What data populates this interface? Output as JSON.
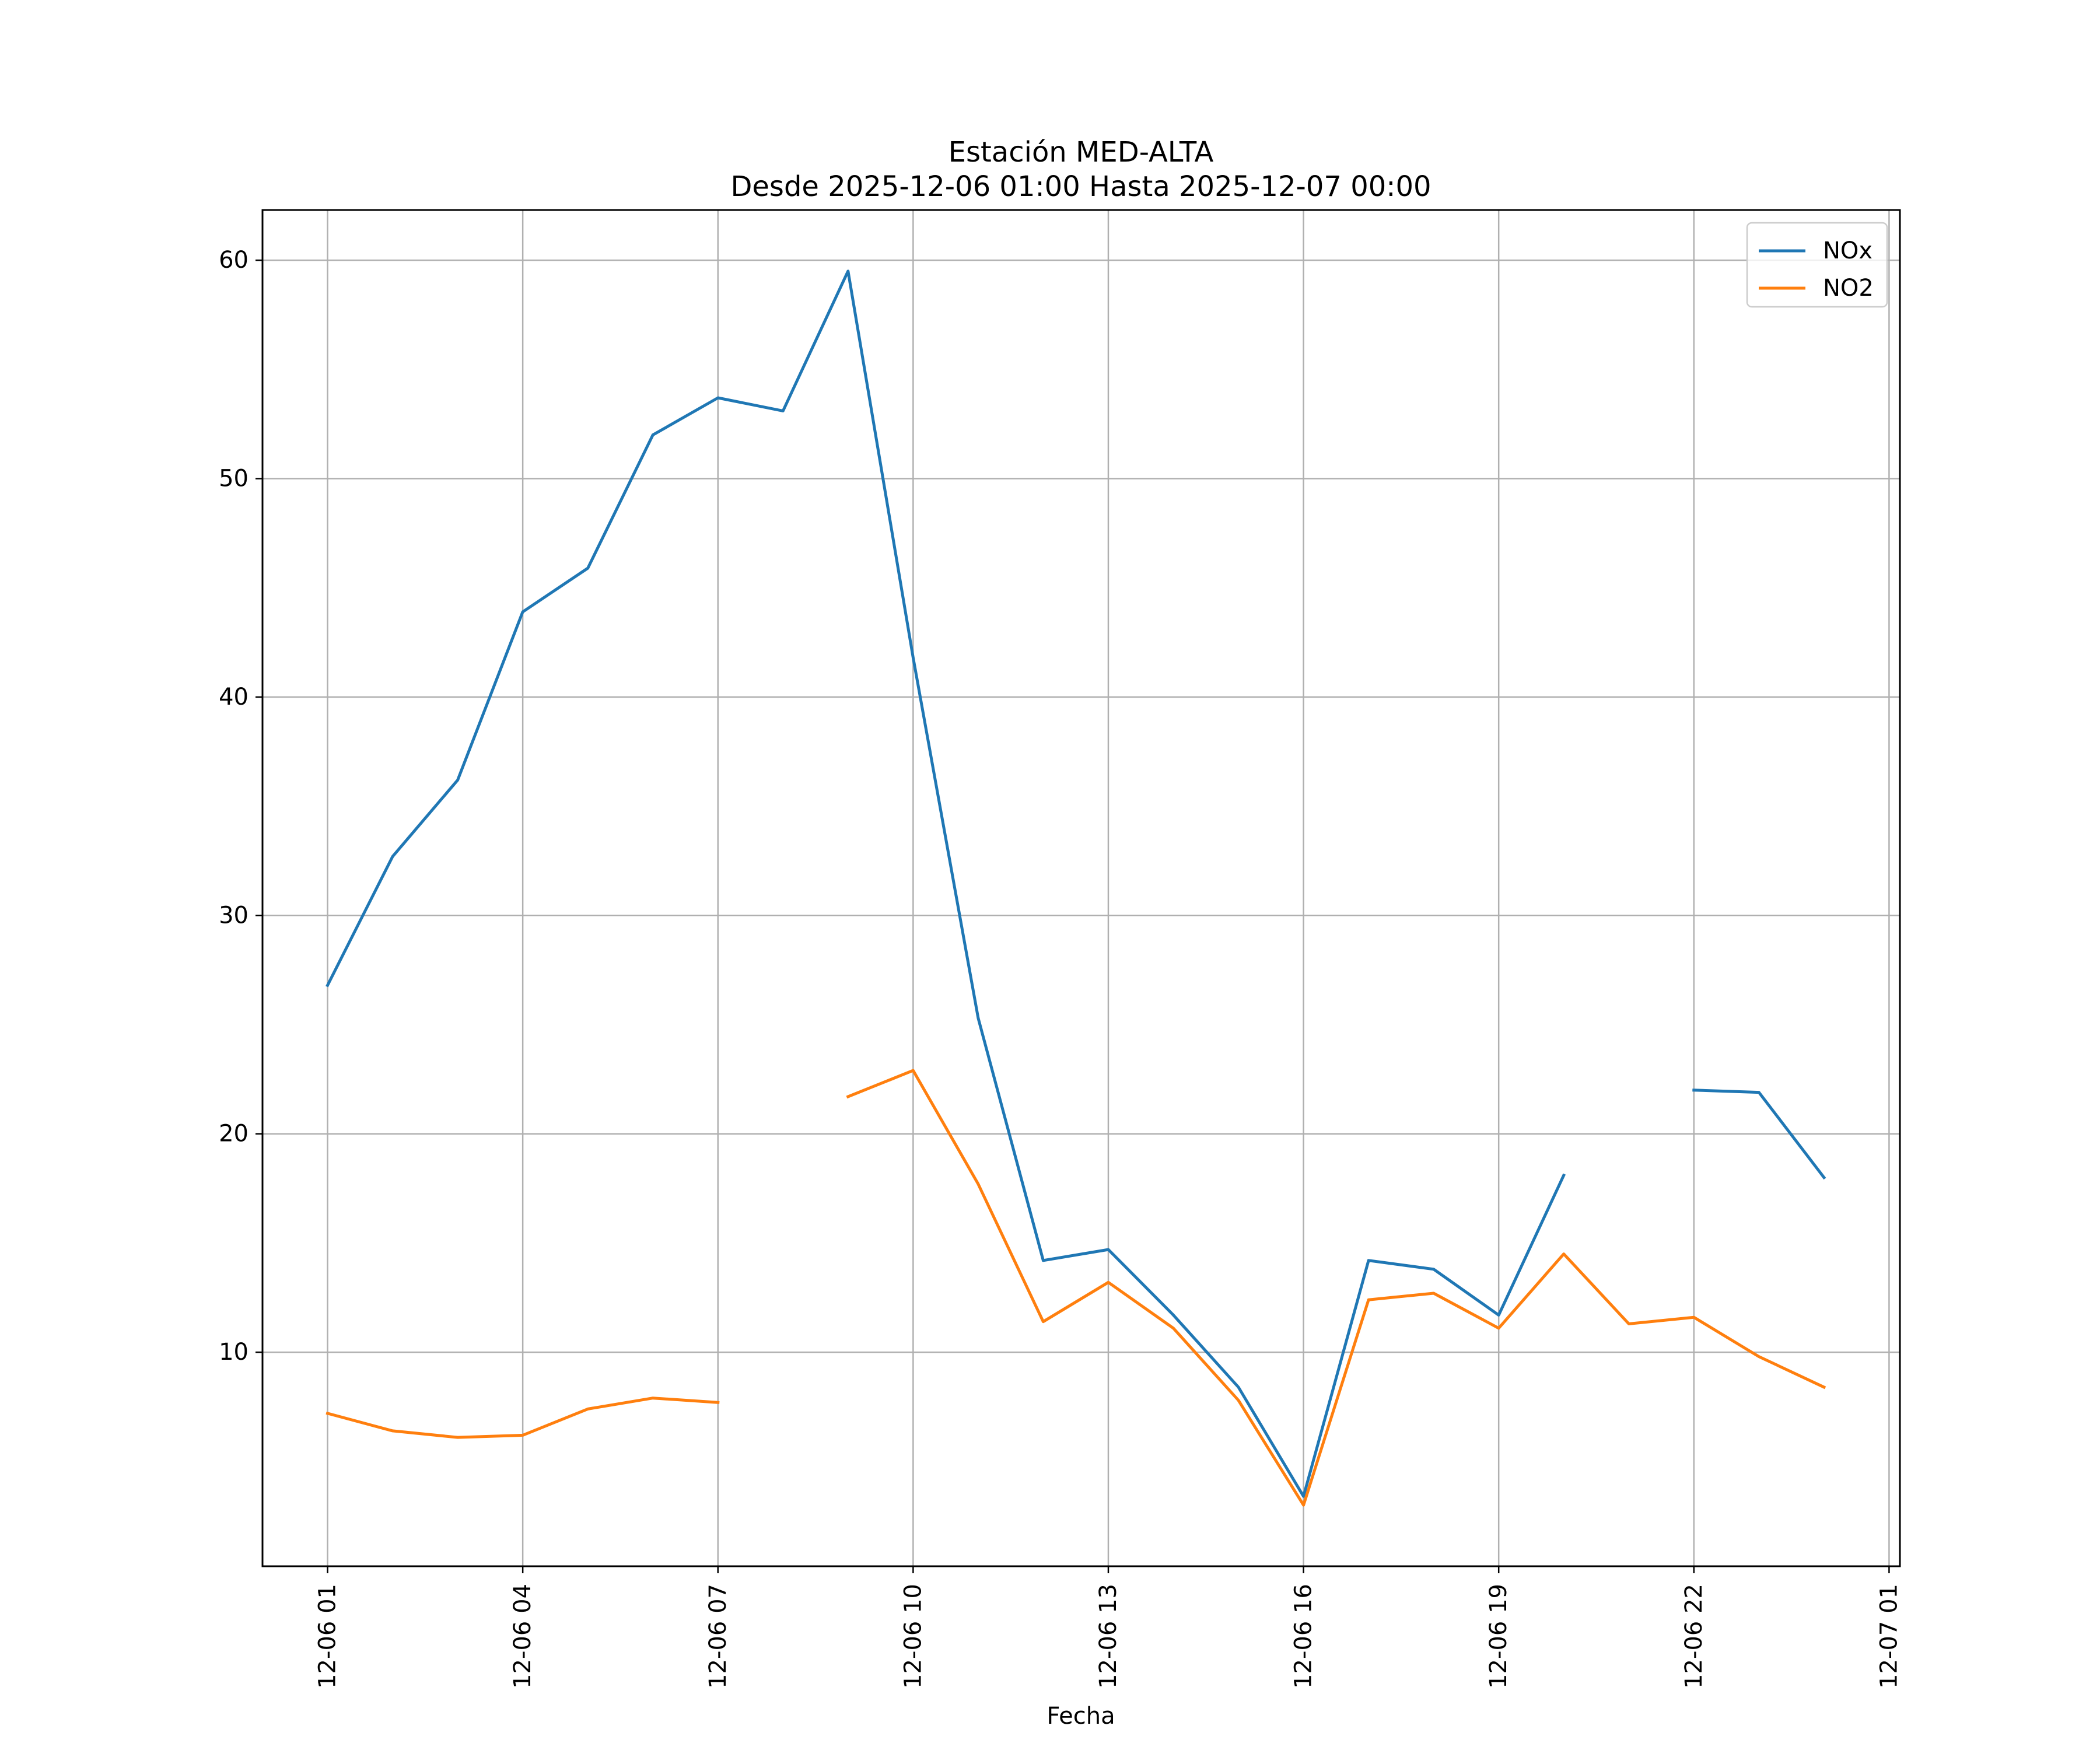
{
  "chart_data": {
    "type": "line",
    "title": "Estación MED-ALTA",
    "subtitle": "Desde 2025-12-06 01:00 Hasta 2025-12-07 00:00",
    "xlabel": "Fecha",
    "ylabel": "",
    "x": [
      "2025-12-06 01:00",
      "2025-12-06 02:00",
      "2025-12-06 03:00",
      "2025-12-06 04:00",
      "2025-12-06 05:00",
      "2025-12-06 06:00",
      "2025-12-06 07:00",
      "2025-12-06 08:00",
      "2025-12-06 09:00",
      "2025-12-06 10:00",
      "2025-12-06 11:00",
      "2025-12-06 12:00",
      "2025-12-06 13:00",
      "2025-12-06 14:00",
      "2025-12-06 15:00",
      "2025-12-06 16:00",
      "2025-12-06 17:00",
      "2025-12-06 18:00",
      "2025-12-06 19:00",
      "2025-12-06 20:00",
      "2025-12-06 21:00",
      "2025-12-06 22:00",
      "2025-12-06 23:00",
      "2025-12-07 00:00"
    ],
    "x_ticks": [
      "2025-12-06 01:00",
      "2025-12-06 04:00",
      "2025-12-06 07:00",
      "2025-12-06 10:00",
      "2025-12-06 13:00",
      "2025-12-06 16:00",
      "2025-12-06 19:00",
      "2025-12-06 22:00",
      "2025-12-07 01:00"
    ],
    "x_tick_labels": [
      "12-06 01",
      "12-06 04",
      "12-06 07",
      "12-06 10",
      "12-06 13",
      "12-06 16",
      "12-06 19",
      "12-06 22",
      "12-07 01"
    ],
    "xlim": [
      "2025-12-06 00:00",
      "2025-12-07 01:10"
    ],
    "ylim": [
      0.2,
      62.3
    ],
    "y_ticks": [
      10,
      20,
      30,
      40,
      50,
      60
    ],
    "grid": true,
    "legend": "top-right",
    "series": [
      {
        "name": "NOx",
        "color": "#1f77b4",
        "values": [
          26.8,
          32.7,
          36.2,
          43.9,
          45.9,
          52.0,
          53.7,
          53.1,
          59.5,
          41.8,
          25.3,
          14.2,
          14.7,
          11.7,
          8.4,
          3.4,
          14.2,
          13.8,
          11.7,
          18.1,
          null,
          22.0,
          21.9,
          18.0
        ]
      },
      {
        "name": "NO2",
        "color": "#ff7f0e",
        "values": [
          7.2,
          6.4,
          6.1,
          6.2,
          7.4,
          7.9,
          7.7,
          null,
          21.7,
          22.9,
          17.7,
          11.4,
          13.2,
          11.1,
          7.8,
          3.0,
          12.4,
          12.7,
          11.1,
          14.5,
          11.3,
          11.6,
          9.8,
          8.4
        ]
      }
    ]
  }
}
